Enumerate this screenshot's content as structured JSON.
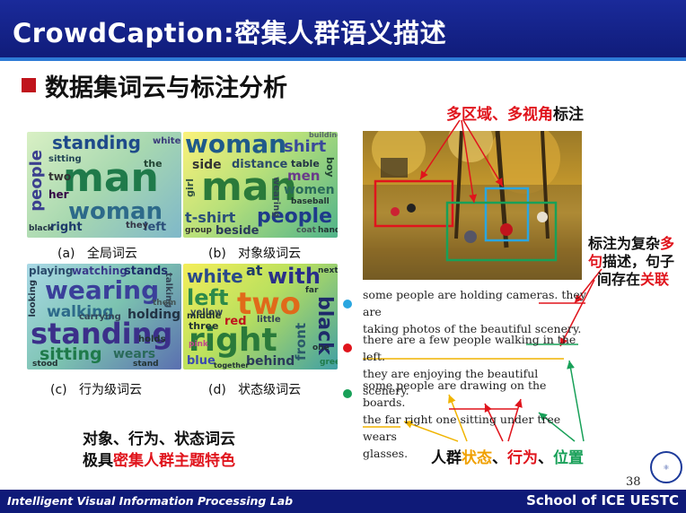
{
  "header": {
    "title": "CrowdCaption:密集人群语义描述"
  },
  "subtitle": "数据集词云与标注分析",
  "clouds": {
    "global": {
      "caption_letter": "(a)",
      "caption": "全局词云",
      "words": [
        "standing",
        "man",
        "woman",
        "people",
        "sitting",
        "two",
        "right",
        "left",
        "black",
        "the",
        "her",
        "white",
        "they"
      ]
    },
    "object": {
      "caption_letter": "(b)",
      "caption": "对象级词云",
      "words": [
        "woman",
        "man",
        "shirt",
        "side",
        "distance",
        "table",
        "men",
        "women",
        "girl",
        "t-shirt",
        "people",
        "group",
        "beside",
        "boy",
        "wearing",
        "baseball",
        "hand",
        "coat",
        "building"
      ]
    },
    "action": {
      "caption_letter": "(c)",
      "caption": "行为级词云",
      "words": [
        "playing",
        "watching",
        "stands",
        "wearing",
        "walking",
        "holding",
        "standing",
        "sitting",
        "wears",
        "looking",
        "carrying",
        "talking",
        "stood",
        "holds",
        "stand",
        "them"
      ]
    },
    "state": {
      "caption_letter": "(d)",
      "caption": "状态级词云",
      "words": [
        "white",
        "at",
        "with",
        "left",
        "two",
        "yellow",
        "right",
        "red",
        "black",
        "front",
        "middle",
        "three",
        "blue",
        "behind",
        "little",
        "next",
        "far",
        "one",
        "pink",
        "together",
        "green"
      ]
    }
  },
  "summary": {
    "line1": "对象、行为、状态词云",
    "line2_prefix": "极具",
    "line2_highlight": "密集人群主题特色"
  },
  "annotations": {
    "top_red": "多区域、多视角",
    "top_black": "标注",
    "right_1": "标注为复杂",
    "right_1_red": "多",
    "right_2_red": "句",
    "right_2": "描述，句子",
    "right_3": "间存在",
    "right_3_red": "关联",
    "bottom_prefix": "人群",
    "bottom_state": "状态",
    "bottom_sep1": "、",
    "bottom_action": "行为",
    "bottom_sep2": "、",
    "bottom_position": "位置"
  },
  "sentences": [
    {
      "color": "#2aa6e0",
      "line1": "some people are holding cameras. they are",
      "line2": "taking photos of the beautiful scenery."
    },
    {
      "color": "#e0141c",
      "line1": "there are a few people walking in the left.",
      "line2": "they are enjoying the beautiful scenery."
    },
    {
      "color": "#18a058",
      "line1": "some people are drawing on the boards.",
      "line2": "the far right one sitting under tree wears",
      "line3": "glasses."
    }
  ],
  "page_number": "38",
  "footer": {
    "left": "Intelligent Visual Information Processing Lab",
    "right": "School of ICE   UESTC"
  },
  "colors": {
    "header": "#101c7a",
    "accent_red": "#e0141c",
    "state_orange": "#f0a000",
    "position_green": "#18a058",
    "box_blue": "#2aa6e0"
  }
}
